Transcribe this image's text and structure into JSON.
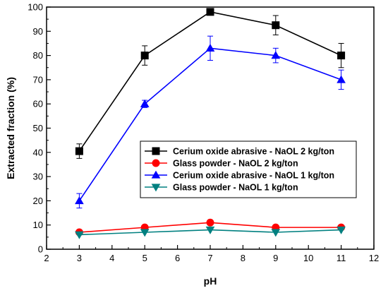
{
  "chart_data": {
    "type": "line",
    "xlabel": "pH",
    "ylabel": "Extracted fraction (%)",
    "xlim": [
      2,
      12
    ],
    "ylim": [
      0,
      100
    ],
    "xticks": [
      2,
      3,
      4,
      5,
      6,
      7,
      8,
      9,
      10,
      11,
      12
    ],
    "yticks": [
      0,
      10,
      20,
      30,
      40,
      50,
      60,
      70,
      80,
      90,
      100
    ],
    "grid": false,
    "legend_position": "center-right",
    "x": [
      3,
      5,
      7,
      9,
      11
    ],
    "series": [
      {
        "name": "Cerium oxide abrasive - NaOL 2 kg/ton",
        "color": "#000000",
        "marker": "square",
        "values": [
          40.5,
          80,
          98,
          92.5,
          80
        ],
        "errors": [
          3,
          4,
          0,
          4,
          5
        ]
      },
      {
        "name": "Glass powder - NaOL 2 kg/ton",
        "color": "#ff0000",
        "marker": "circle",
        "values": [
          7,
          9,
          11,
          9,
          9
        ],
        "errors": [
          0,
          0,
          0,
          0,
          0
        ]
      },
      {
        "name": "Cerium oxide abrasive - NaOL 1 kg/ton",
        "color": "#0000ff",
        "marker": "triangle-up",
        "values": [
          20,
          60,
          83,
          80,
          70
        ],
        "errors": [
          3,
          1.5,
          5,
          3,
          4
        ]
      },
      {
        "name": "Glass powder - NaOL 1 kg/ton",
        "color": "#008080",
        "marker": "triangle-down",
        "values": [
          6,
          7,
          8,
          7,
          8
        ],
        "errors": [
          0,
          0,
          0,
          0,
          0
        ]
      }
    ]
  }
}
